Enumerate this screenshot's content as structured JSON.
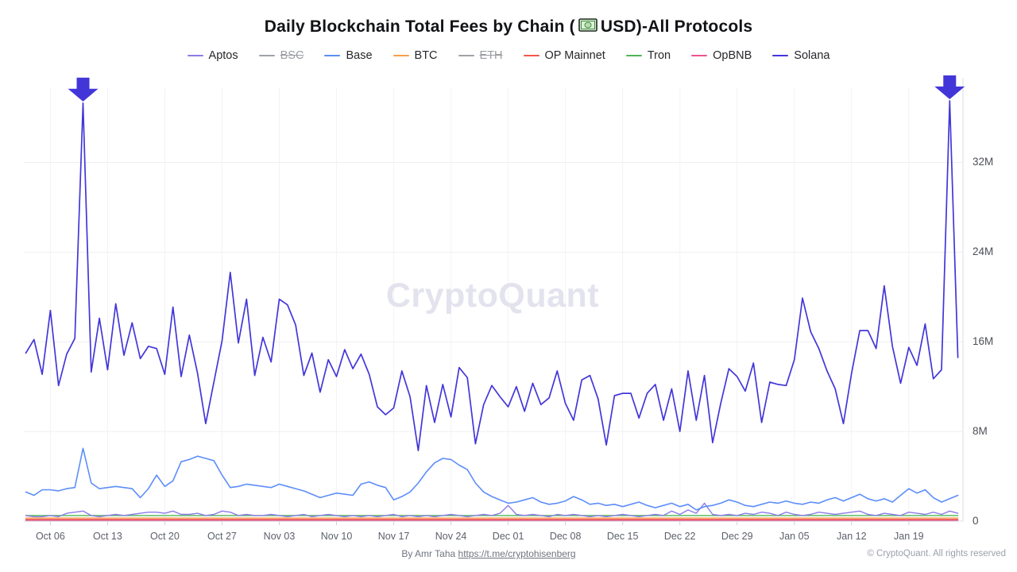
{
  "title": {
    "prefix": "Daily Blockchain Total Fees by Chain (",
    "suffix": "USD)-All Protocols",
    "icon": "dollar-banknote"
  },
  "legend": {
    "items": [
      {
        "label": "Aptos",
        "color": "#8b7ce8",
        "disabled": false
      },
      {
        "label": "BSC",
        "color": "#9da2a8",
        "disabled": true
      },
      {
        "label": "Base",
        "color": "#5d8ef9",
        "disabled": false
      },
      {
        "label": "BTC",
        "color": "#f9a04a",
        "disabled": false
      },
      {
        "label": "ETH",
        "color": "#9da2a8",
        "disabled": true
      },
      {
        "label": "OP Mainnet",
        "color": "#f2574d",
        "disabled": false
      },
      {
        "label": "Tron",
        "color": "#4eb656",
        "disabled": false
      },
      {
        "label": "OpBNB",
        "color": "#ed5393",
        "disabled": false
      },
      {
        "label": "Solana",
        "color": "#4336d9",
        "disabled": false
      }
    ]
  },
  "chart_data": {
    "type": "line",
    "title": "Daily Blockchain Total Fees by Chain (USD) - All Protocols",
    "unit": "USD (millions) per day",
    "x_is_daily": true,
    "x_range_note": "daily points from Oct 03 to Jan 25",
    "ylim": [
      0,
      40
    ],
    "grid": true,
    "legend_position": "top",
    "y_ticks": [
      {
        "value": 0,
        "label": "0"
      },
      {
        "value": 8,
        "label": "8M"
      },
      {
        "value": 16,
        "label": "16M"
      },
      {
        "value": 24,
        "label": "24M"
      },
      {
        "value": 32,
        "label": "32M"
      }
    ],
    "x_ticks": [
      {
        "index": 3,
        "label": "Oct 06"
      },
      {
        "index": 10,
        "label": "Oct 13"
      },
      {
        "index": 17,
        "label": "Oct 20"
      },
      {
        "index": 24,
        "label": "Oct 27"
      },
      {
        "index": 31,
        "label": "Nov 03"
      },
      {
        "index": 38,
        "label": "Nov 10"
      },
      {
        "index": 45,
        "label": "Nov 17"
      },
      {
        "index": 52,
        "label": "Nov 24"
      },
      {
        "index": 59,
        "label": "Dec 01"
      },
      {
        "index": 66,
        "label": "Dec 08"
      },
      {
        "index": 73,
        "label": "Dec 15"
      },
      {
        "index": 80,
        "label": "Dec 22"
      },
      {
        "index": 87,
        "label": "Dec 29"
      },
      {
        "index": 94,
        "label": "Jan 05"
      },
      {
        "index": 101,
        "label": "Jan 12"
      },
      {
        "index": 108,
        "label": "Jan 19"
      }
    ],
    "series": [
      {
        "name": "OpBNB",
        "color": "#d6366e",
        "width": 1.3,
        "approx_constant": 0.07
      },
      {
        "name": "OP Mainnet",
        "color": "#f2574d",
        "width": 1.3,
        "approx_constant": 0.18
      },
      {
        "name": "BTC",
        "color": "#f9a04a",
        "width": 1.3,
        "approx_constant": 0.28
      },
      {
        "name": "Tron",
        "color": "#4eb656",
        "width": 1.4,
        "approx_constant": 0.5
      },
      {
        "name": "BSC",
        "color": "#9da2a8",
        "disabled": true
      },
      {
        "name": "ETH",
        "color": "#9da2a8",
        "disabled": true
      },
      {
        "name": "Aptos",
        "color": "#8b7ce8",
        "width": 1.4,
        "values": [
          0.5,
          0.4,
          0.4,
          0.5,
          0.4,
          0.7,
          0.8,
          0.9,
          0.5,
          0.4,
          0.5,
          0.6,
          0.5,
          0.6,
          0.7,
          0.8,
          0.8,
          0.7,
          0.9,
          0.6,
          0.6,
          0.7,
          0.5,
          0.6,
          0.9,
          0.8,
          0.5,
          0.6,
          0.5,
          0.5,
          0.6,
          0.5,
          0.4,
          0.5,
          0.6,
          0.4,
          0.5,
          0.6,
          0.5,
          0.4,
          0.5,
          0.4,
          0.5,
          0.4,
          0.5,
          0.6,
          0.4,
          0.5,
          0.4,
          0.5,
          0.4,
          0.5,
          0.6,
          0.5,
          0.4,
          0.5,
          0.6,
          0.5,
          0.7,
          1.4,
          0.6,
          0.5,
          0.6,
          0.5,
          0.4,
          0.6,
          0.5,
          0.6,
          0.5,
          0.4,
          0.5,
          0.4,
          0.5,
          0.6,
          0.5,
          0.4,
          0.5,
          0.6,
          0.5,
          0.9,
          0.6,
          1.0,
          0.7,
          1.6,
          0.6,
          0.5,
          0.6,
          0.5,
          0.7,
          0.6,
          0.8,
          0.7,
          0.5,
          0.8,
          0.6,
          0.5,
          0.6,
          0.8,
          0.7,
          0.6,
          0.7,
          0.8,
          0.9,
          0.6,
          0.5,
          0.7,
          0.6,
          0.5,
          0.8,
          0.7,
          0.6,
          0.8,
          0.6,
          0.9,
          0.7
        ]
      },
      {
        "name": "Base",
        "color": "#5d8ef9",
        "width": 1.6,
        "values": [
          2.6,
          2.3,
          2.8,
          2.8,
          2.7,
          2.9,
          3.0,
          6.5,
          3.4,
          2.9,
          3.0,
          3.1,
          3.0,
          2.9,
          2.1,
          2.9,
          4.1,
          3.1,
          3.6,
          5.3,
          5.5,
          5.8,
          5.6,
          5.4,
          4.1,
          3.0,
          3.1,
          3.3,
          3.2,
          3.1,
          3.0,
          3.3,
          3.1,
          2.9,
          2.7,
          2.4,
          2.1,
          2.3,
          2.5,
          2.4,
          2.3,
          3.3,
          3.5,
          3.2,
          3.0,
          1.9,
          2.2,
          2.6,
          3.4,
          4.4,
          5.2,
          5.6,
          5.5,
          5.0,
          4.6,
          3.4,
          2.6,
          2.2,
          1.9,
          1.6,
          1.7,
          1.9,
          2.1,
          1.7,
          1.5,
          1.6,
          1.8,
          2.2,
          1.9,
          1.5,
          1.6,
          1.4,
          1.5,
          1.3,
          1.5,
          1.7,
          1.4,
          1.2,
          1.4,
          1.6,
          1.3,
          1.5,
          1.0,
          1.3,
          1.4,
          1.6,
          1.9,
          1.7,
          1.4,
          1.3,
          1.5,
          1.7,
          1.6,
          1.8,
          1.6,
          1.5,
          1.7,
          1.6,
          1.9,
          2.1,
          1.8,
          2.1,
          2.4,
          2.0,
          1.8,
          2.0,
          1.7,
          2.3,
          2.9,
          2.5,
          2.8,
          2.1,
          1.7,
          2.0,
          2.3
        ]
      },
      {
        "name": "Solana",
        "color": "#4336d9",
        "width": 1.7,
        "values": [
          15.0,
          16.2,
          13.1,
          18.8,
          12.1,
          14.9,
          16.3,
          37.3,
          13.3,
          18.1,
          13.5,
          19.4,
          14.8,
          17.7,
          14.5,
          15.6,
          15.4,
          13.1,
          19.1,
          12.9,
          16.6,
          13.2,
          8.7,
          12.4,
          16.1,
          22.2,
          15.9,
          19.8,
          13.0,
          16.4,
          14.2,
          19.8,
          19.3,
          17.5,
          13.0,
          15.0,
          11.5,
          14.4,
          12.9,
          15.3,
          13.6,
          14.9,
          13.1,
          10.2,
          9.5,
          10.1,
          13.4,
          11.1,
          6.3,
          12.1,
          8.8,
          12.2,
          9.3,
          13.7,
          12.8,
          6.9,
          10.4,
          12.1,
          11.1,
          10.2,
          12.0,
          9.8,
          12.3,
          10.4,
          11.0,
          13.4,
          10.5,
          9.0,
          12.6,
          13.0,
          10.9,
          6.8,
          11.2,
          11.4,
          11.4,
          9.2,
          11.4,
          12.2,
          9.0,
          11.8,
          8.0,
          13.4,
          9.0,
          13.0,
          7.0,
          10.5,
          13.6,
          12.9,
          11.6,
          14.1,
          8.8,
          12.4,
          12.2,
          12.1,
          14.4,
          19.9,
          16.9,
          15.4,
          13.4,
          11.8,
          8.7,
          13.2,
          17.0,
          17.0,
          15.4,
          21.0,
          15.6,
          12.3,
          15.5,
          13.9,
          17.6,
          12.7,
          13.5,
          37.5,
          14.6
        ]
      }
    ],
    "annotations": {
      "arrows": [
        {
          "target_series": "Solana",
          "index": 7,
          "note": "spike ~37.3M"
        },
        {
          "target_series": "Solana",
          "index": 113,
          "note": "spike ~37.5M"
        }
      ],
      "arrow_color": "#4336d9"
    }
  },
  "watermark": "CryptoQuant",
  "footer": {
    "byline": "By Amr Taha ",
    "link": "https://t.me/cryptohisenberg",
    "copyright": "© CryptoQuant. All rights reserved"
  }
}
